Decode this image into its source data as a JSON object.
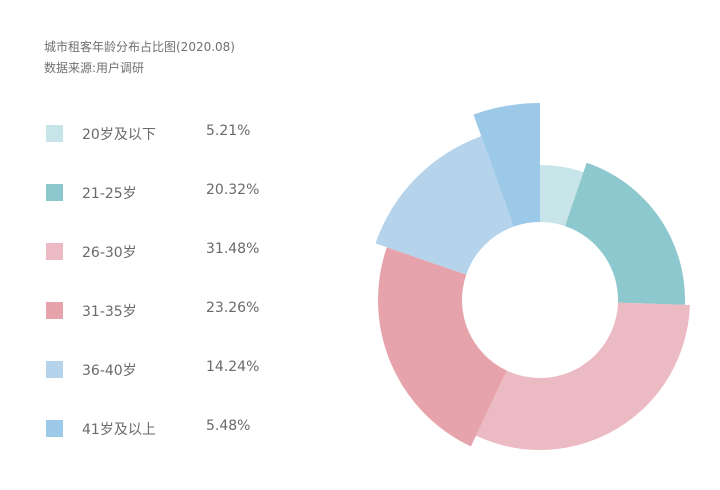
{
  "header": {
    "title": "城市租客年龄分布占比图(2020.08)",
    "source": "数据来源:用户调研"
  },
  "chart_data": {
    "type": "pie",
    "variant": "donut (radius varies per slice)",
    "title": "城市租客年龄分布占比图(2020.08)",
    "legend_position": "left",
    "categories": [
      "20岁及以下",
      "21-25岁",
      "26-30岁",
      "31-35岁",
      "36-40岁",
      "41岁及以上"
    ],
    "values": [
      5.21,
      20.32,
      31.48,
      23.26,
      14.24,
      5.48
    ],
    "value_labels": [
      "5.21%",
      "20.32%",
      "31.48%",
      "23.26%",
      "14.24%",
      "5.48%"
    ],
    "colors": [
      "#c7e4e8",
      "#8cc8cd",
      "#ebbac2",
      "#e6a3ab",
      "#b5d4ec",
      "#9dc9e9"
    ]
  }
}
